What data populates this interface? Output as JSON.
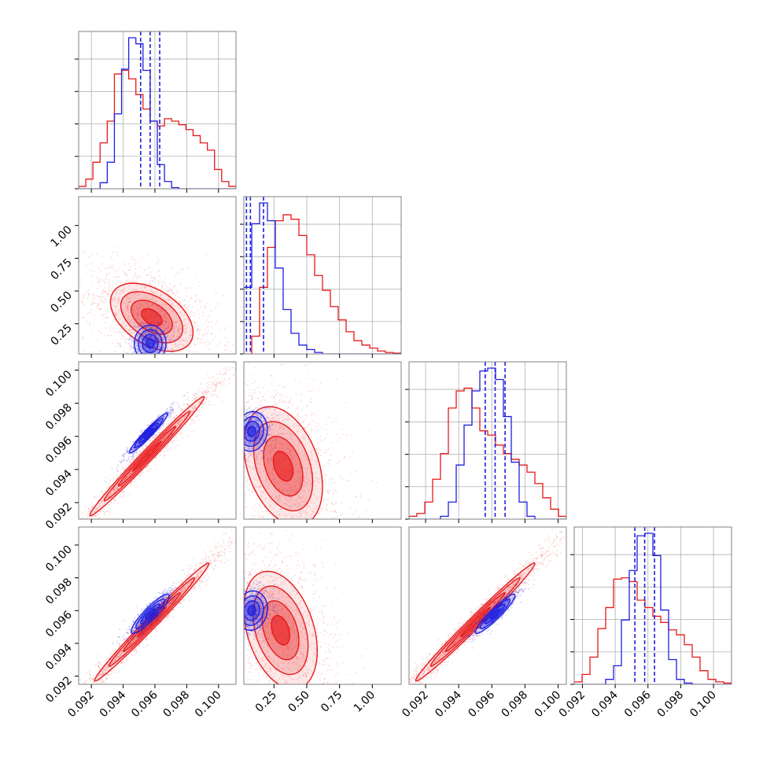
{
  "chart_data": {
    "type": "corner",
    "description_series": [
      "red",
      "blue"
    ],
    "colors": {
      "red": "#e8191b",
      "blue": "#1f1fe0",
      "grid": "#b0b0b0",
      "frame": "#808080"
    },
    "x_ticks": {
      "p0": [
        "0.092",
        "0.094",
        "0.096",
        "0.098",
        "0.100"
      ],
      "p1": [
        "0.25",
        "0.50",
        "0.75",
        "1.00"
      ],
      "p2": [
        "0.092",
        "0.094",
        "0.096",
        "0.098",
        "0.100"
      ],
      "p3": [
        "0.092",
        "0.094",
        "0.096",
        "0.098",
        "0.100"
      ]
    },
    "y_ticks": {
      "row1": [
        "0.25",
        "0.50",
        "0.75",
        "1.00"
      ],
      "row2": [
        "0.092",
        "0.094",
        "0.096",
        "0.098",
        "0.100"
      ],
      "row3": [
        "0.092",
        "0.094",
        "0.096",
        "0.098",
        "0.100"
      ]
    },
    "ranges": {
      "p0": [
        0.0912,
        0.1011
      ],
      "p1": [
        0.02,
        1.22
      ],
      "p2": [
        0.091,
        0.1005
      ],
      "p3": [
        0.0915,
        0.1011
      ]
    },
    "histograms": {
      "p0": {
        "bins": [
          0.0912,
          0.1011
        ],
        "red": [
          0.02,
          0.08,
          0.22,
          0.38,
          0.56,
          0.95,
          0.98,
          0.91,
          0.78,
          0.66,
          0.56,
          0.52,
          0.58,
          0.56,
          0.53,
          0.49,
          0.44,
          0.38,
          0.32,
          0.16,
          0.06,
          0.02
        ],
        "blue": [
          0.0,
          0.0,
          0.0,
          0.05,
          0.22,
          0.62,
          0.99,
          1.25,
          1.2,
          0.98,
          0.56,
          0.2,
          0.06,
          0.01,
          0.0,
          0.0,
          0.0,
          0.0,
          0.0,
          0.0,
          0.0,
          0.0
        ],
        "blue_quantiles": [
          0.0951,
          0.0957,
          0.0963
        ]
      },
      "p1": {
        "bins": [
          0.02,
          1.22
        ],
        "red": [
          0.0,
          0.12,
          0.45,
          0.72,
          0.9,
          0.94,
          0.91,
          0.8,
          0.67,
          0.53,
          0.43,
          0.32,
          0.23,
          0.15,
          0.09,
          0.06,
          0.04,
          0.02,
          0.01,
          0.005
        ],
        "blue": [
          0.45,
          0.88,
          1.02,
          0.9,
          0.58,
          0.3,
          0.14,
          0.06,
          0.03,
          0.01,
          0.0,
          0.0,
          0.0,
          0.0,
          0.0,
          0.0,
          0.0,
          0.0,
          0.0,
          0.0
        ],
        "blue_quantiles": [
          0.04,
          0.07,
          0.17
        ]
      },
      "p2": {
        "bins": [
          0.091,
          0.1005
        ],
        "red": [
          0.02,
          0.04,
          0.12,
          0.28,
          0.46,
          0.78,
          0.9,
          0.92,
          0.78,
          0.62,
          0.59,
          0.52,
          0.46,
          0.42,
          0.38,
          0.33,
          0.25,
          0.15,
          0.07,
          0.02
        ],
        "blue": [
          0.0,
          0.0,
          0.0,
          0.0,
          0.02,
          0.12,
          0.38,
          0.66,
          0.9,
          1.04,
          1.06,
          0.98,
          0.72,
          0.4,
          0.12,
          0.02,
          0.0,
          0.0,
          0.0,
          0.0
        ],
        "blue_quantiles": [
          0.0956,
          0.0962,
          0.0968
        ]
      },
      "p3": {
        "bins": [
          0.0915,
          0.1011
        ],
        "red": [
          0.02,
          0.08,
          0.22,
          0.45,
          0.62,
          0.85,
          0.86,
          0.83,
          0.68,
          0.62,
          0.55,
          0.5,
          0.44,
          0.4,
          0.32,
          0.22,
          0.11,
          0.04,
          0.02,
          0.01
        ],
        "blue": [
          0.0,
          0.0,
          0.0,
          0.0,
          0.04,
          0.15,
          0.52,
          0.92,
          1.2,
          1.22,
          1.04,
          0.6,
          0.2,
          0.04,
          0.01,
          0.0,
          0.0,
          0.0,
          0.0,
          0.0
        ],
        "blue_quantiles": [
          0.0952,
          0.0958,
          0.0964
        ]
      }
    },
    "joint": {
      "p1_vs_p0": {
        "red": {
          "mx": 0.0958,
          "my": 0.3,
          "sx": 0.0013,
          "sy": 0.13,
          "rho": -0.45
        },
        "blue": {
          "mx": 0.0957,
          "my": 0.1,
          "sx": 0.0005,
          "sy": 0.07,
          "rho": 0.0
        }
      },
      "p2_vs_p0": {
        "red": {
          "mx": 0.0955,
          "my": 0.0948,
          "sx": 0.0018,
          "sy": 0.0018,
          "rho": 0.99
        },
        "blue": {
          "mx": 0.0956,
          "my": 0.0962,
          "sx": 0.0006,
          "sy": 0.0006,
          "rho": 0.96
        }
      },
      "p2_vs_p1": {
        "red": {
          "mx": 0.32,
          "my": 0.0942,
          "sx": 0.15,
          "sy": 0.0018,
          "rho": -0.35
        },
        "blue": {
          "mx": 0.08,
          "my": 0.0963,
          "sx": 0.06,
          "sy": 0.0006,
          "rho": 0.1
        }
      },
      "p3_vs_p0": {
        "red": {
          "mx": 0.0958,
          "my": 0.0953,
          "sx": 0.0018,
          "sy": 0.0018,
          "rho": 0.99
        },
        "blue": {
          "mx": 0.0957,
          "my": 0.0958,
          "sx": 0.0006,
          "sy": 0.0006,
          "rho": 0.9
        }
      },
      "p3_vs_p1": {
        "red": {
          "mx": 0.3,
          "my": 0.0948,
          "sx": 0.14,
          "sy": 0.0018,
          "rho": -0.35
        },
        "blue": {
          "mx": 0.08,
          "my": 0.096,
          "sx": 0.06,
          "sy": 0.0006,
          "rho": 0.1
        }
      },
      "p3_vs_p2": {
        "red": {
          "mx": 0.095,
          "my": 0.0953,
          "sx": 0.0018,
          "sy": 0.0018,
          "rho": 0.99
        },
        "blue": {
          "mx": 0.0962,
          "my": 0.0958,
          "sx": 0.0006,
          "sy": 0.0006,
          "rho": 0.93
        }
      }
    }
  }
}
